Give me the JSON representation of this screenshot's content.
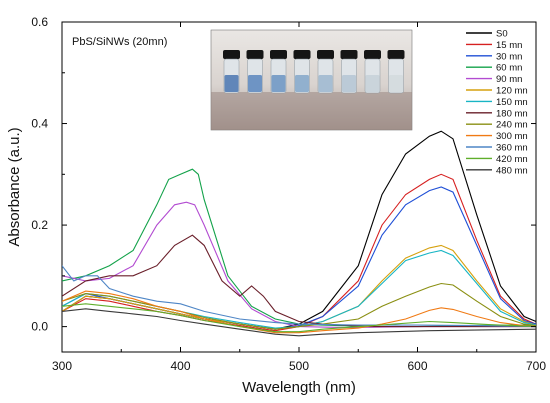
{
  "chart_data": {
    "type": "line",
    "annotation": "PbS/SiNWs (20mn)",
    "xlabel": "Wavelength (nm)",
    "ylabel": "Absorbance (a.u.)",
    "xlim": [
      300,
      700
    ],
    "ylim": [
      -0.05,
      0.6
    ],
    "xticks": [
      300,
      400,
      500,
      600,
      700
    ],
    "yticks": [
      0.0,
      0.2,
      0.4,
      0.6
    ],
    "ytick_labels": [
      "0.0",
      "0.2",
      "0.4",
      "0.6"
    ],
    "grid": false,
    "legend_position": "top-right",
    "inset": "photograph of eight sample vials (blue to clear)",
    "series": [
      {
        "name": "S0",
        "color": "#000000",
        "points": [
          [
            300,
            0.03
          ],
          [
            320,
            0.06
          ],
          [
            340,
            0.055
          ],
          [
            360,
            0.045
          ],
          [
            380,
            0.035
          ],
          [
            400,
            0.025
          ],
          [
            420,
            0.015
          ],
          [
            450,
            0.005
          ],
          [
            480,
            -0.005
          ],
          [
            500,
            0.005
          ],
          [
            520,
            0.03
          ],
          [
            550,
            0.12
          ],
          [
            570,
            0.26
          ],
          [
            590,
            0.34
          ],
          [
            610,
            0.375
          ],
          [
            620,
            0.385
          ],
          [
            630,
            0.37
          ],
          [
            650,
            0.22
          ],
          [
            670,
            0.08
          ],
          [
            690,
            0.02
          ],
          [
            700,
            0.01
          ]
        ]
      },
      {
        "name": "15 mn",
        "color": "#d62020",
        "points": [
          [
            300,
            0.03
          ],
          [
            320,
            0.055
          ],
          [
            340,
            0.05
          ],
          [
            360,
            0.04
          ],
          [
            380,
            0.03
          ],
          [
            400,
            0.022
          ],
          [
            420,
            0.012
          ],
          [
            450,
            0.002
          ],
          [
            480,
            -0.008
          ],
          [
            500,
            0.0
          ],
          [
            520,
            0.02
          ],
          [
            550,
            0.09
          ],
          [
            570,
            0.2
          ],
          [
            590,
            0.26
          ],
          [
            610,
            0.29
          ],
          [
            620,
            0.3
          ],
          [
            630,
            0.29
          ],
          [
            650,
            0.17
          ],
          [
            670,
            0.06
          ],
          [
            690,
            0.015
          ],
          [
            700,
            0.005
          ]
        ]
      },
      {
        "name": "30 mn",
        "color": "#1f4fd6",
        "points": [
          [
            300,
            0.04
          ],
          [
            320,
            0.065
          ],
          [
            340,
            0.055
          ],
          [
            360,
            0.045
          ],
          [
            380,
            0.035
          ],
          [
            400,
            0.025
          ],
          [
            420,
            0.015
          ],
          [
            450,
            0.005
          ],
          [
            480,
            -0.005
          ],
          [
            500,
            0.002
          ],
          [
            520,
            0.02
          ],
          [
            550,
            0.08
          ],
          [
            570,
            0.18
          ],
          [
            590,
            0.24
          ],
          [
            610,
            0.268
          ],
          [
            620,
            0.275
          ],
          [
            630,
            0.265
          ],
          [
            650,
            0.16
          ],
          [
            670,
            0.055
          ],
          [
            690,
            0.012
          ],
          [
            700,
            0.005
          ]
        ]
      },
      {
        "name": "60 mn",
        "color": "#13a24a",
        "points": [
          [
            300,
            0.09
          ],
          [
            320,
            0.1
          ],
          [
            340,
            0.12
          ],
          [
            360,
            0.15
          ],
          [
            380,
            0.24
          ],
          [
            390,
            0.29
          ],
          [
            400,
            0.3
          ],
          [
            410,
            0.31
          ],
          [
            415,
            0.3
          ],
          [
            420,
            0.25
          ],
          [
            440,
            0.1
          ],
          [
            460,
            0.04
          ],
          [
            480,
            0.015
          ],
          [
            500,
            0.005
          ],
          [
            520,
            0.003
          ],
          [
            560,
            0.0
          ],
          [
            600,
            0.0
          ],
          [
            640,
            0.002
          ],
          [
            680,
            0.003
          ],
          [
            700,
            0.003
          ]
        ]
      },
      {
        "name": "90 mn",
        "color": "#b24bd1",
        "points": [
          [
            300,
            0.1
          ],
          [
            320,
            0.09
          ],
          [
            340,
            0.095
          ],
          [
            360,
            0.12
          ],
          [
            380,
            0.2
          ],
          [
            395,
            0.24
          ],
          [
            405,
            0.245
          ],
          [
            412,
            0.24
          ],
          [
            420,
            0.2
          ],
          [
            440,
            0.09
          ],
          [
            460,
            0.035
          ],
          [
            480,
            0.01
          ],
          [
            500,
            0.0
          ],
          [
            540,
            -0.002
          ],
          [
            600,
            0.0
          ],
          [
            650,
            0.0
          ],
          [
            700,
            0.0
          ]
        ]
      },
      {
        "name": "120 mn",
        "color": "#d6a10f",
        "points": [
          [
            300,
            0.03
          ],
          [
            320,
            0.06
          ],
          [
            340,
            0.055
          ],
          [
            360,
            0.045
          ],
          [
            380,
            0.035
          ],
          [
            400,
            0.025
          ],
          [
            420,
            0.015
          ],
          [
            450,
            0.005
          ],
          [
            480,
            -0.005
          ],
          [
            500,
            0.0
          ],
          [
            520,
            0.01
          ],
          [
            550,
            0.04
          ],
          [
            570,
            0.09
          ],
          [
            590,
            0.135
          ],
          [
            610,
            0.155
          ],
          [
            620,
            0.16
          ],
          [
            630,
            0.15
          ],
          [
            650,
            0.09
          ],
          [
            670,
            0.035
          ],
          [
            690,
            0.01
          ],
          [
            700,
            0.003
          ]
        ]
      },
      {
        "name": "150 mn",
        "color": "#18b5c4",
        "points": [
          [
            300,
            0.04
          ],
          [
            320,
            0.065
          ],
          [
            340,
            0.06
          ],
          [
            360,
            0.05
          ],
          [
            380,
            0.04
          ],
          [
            400,
            0.03
          ],
          [
            420,
            0.02
          ],
          [
            450,
            0.008
          ],
          [
            480,
            -0.003
          ],
          [
            500,
            0.0
          ],
          [
            520,
            0.01
          ],
          [
            550,
            0.04
          ],
          [
            570,
            0.085
          ],
          [
            590,
            0.13
          ],
          [
            610,
            0.145
          ],
          [
            620,
            0.15
          ],
          [
            630,
            0.14
          ],
          [
            650,
            0.085
          ],
          [
            670,
            0.03
          ],
          [
            690,
            0.008
          ],
          [
            700,
            0.003
          ]
        ]
      },
      {
        "name": "180 mn",
        "color": "#6a1f2a",
        "points": [
          [
            300,
            0.06
          ],
          [
            320,
            0.09
          ],
          [
            340,
            0.1
          ],
          [
            360,
            0.1
          ],
          [
            380,
            0.12
          ],
          [
            395,
            0.16
          ],
          [
            410,
            0.18
          ],
          [
            420,
            0.16
          ],
          [
            435,
            0.09
          ],
          [
            450,
            0.06
          ],
          [
            460,
            0.08
          ],
          [
            470,
            0.06
          ],
          [
            480,
            0.03
          ],
          [
            500,
            0.01
          ],
          [
            520,
            0.005
          ],
          [
            560,
            0.0
          ],
          [
            600,
            0.0
          ],
          [
            640,
            0.0
          ],
          [
            680,
            0.0
          ],
          [
            700,
            0.0
          ]
        ]
      },
      {
        "name": "240 mn",
        "color": "#8a8f12",
        "points": [
          [
            300,
            0.05
          ],
          [
            320,
            0.065
          ],
          [
            340,
            0.06
          ],
          [
            360,
            0.05
          ],
          [
            380,
            0.04
          ],
          [
            400,
            0.03
          ],
          [
            420,
            0.018
          ],
          [
            450,
            0.005
          ],
          [
            480,
            -0.005
          ],
          [
            500,
            0.0
          ],
          [
            520,
            0.005
          ],
          [
            550,
            0.015
          ],
          [
            570,
            0.04
          ],
          [
            590,
            0.06
          ],
          [
            610,
            0.078
          ],
          [
            620,
            0.085
          ],
          [
            630,
            0.082
          ],
          [
            650,
            0.05
          ],
          [
            670,
            0.02
          ],
          [
            690,
            0.005
          ],
          [
            700,
            0.002
          ]
        ]
      },
      {
        "name": "300 mn",
        "color": "#f07a14",
        "points": [
          [
            300,
            0.05
          ],
          [
            320,
            0.07
          ],
          [
            340,
            0.065
          ],
          [
            360,
            0.055
          ],
          [
            380,
            0.04
          ],
          [
            400,
            0.03
          ],
          [
            420,
            0.015
          ],
          [
            450,
            0.0
          ],
          [
            480,
            -0.012
          ],
          [
            500,
            -0.012
          ],
          [
            520,
            -0.008
          ],
          [
            550,
            -0.003
          ],
          [
            570,
            0.005
          ],
          [
            590,
            0.015
          ],
          [
            610,
            0.032
          ],
          [
            620,
            0.037
          ],
          [
            630,
            0.034
          ],
          [
            650,
            0.02
          ],
          [
            670,
            0.008
          ],
          [
            690,
            0.002
          ],
          [
            700,
            0.0
          ]
        ]
      },
      {
        "name": "360 mn",
        "color": "#4f86c6",
        "points": [
          [
            300,
            0.12
          ],
          [
            310,
            0.09
          ],
          [
            320,
            0.1
          ],
          [
            330,
            0.1
          ],
          [
            340,
            0.075
          ],
          [
            360,
            0.06
          ],
          [
            380,
            0.05
          ],
          [
            400,
            0.045
          ],
          [
            420,
            0.03
          ],
          [
            450,
            0.015
          ],
          [
            480,
            0.008
          ],
          [
            500,
            0.005
          ],
          [
            550,
            0.003
          ],
          [
            600,
            0.003
          ],
          [
            650,
            0.002
          ],
          [
            700,
            0.0
          ]
        ]
      },
      {
        "name": "420 mn",
        "color": "#5fae2a",
        "points": [
          [
            300,
            0.04
          ],
          [
            320,
            0.045
          ],
          [
            340,
            0.04
          ],
          [
            360,
            0.035
          ],
          [
            380,
            0.03
          ],
          [
            400,
            0.022
          ],
          [
            420,
            0.012
          ],
          [
            450,
            0.0
          ],
          [
            480,
            -0.01
          ],
          [
            500,
            -0.01
          ],
          [
            520,
            -0.005
          ],
          [
            550,
            0.0
          ],
          [
            580,
            0.005
          ],
          [
            610,
            0.01
          ],
          [
            630,
            0.008
          ],
          [
            660,
            0.004
          ],
          [
            690,
            0.001
          ],
          [
            700,
            0.0
          ]
        ]
      },
      {
        "name": "480 mn",
        "color": "#3a3a3a",
        "points": [
          [
            300,
            0.03
          ],
          [
            320,
            0.035
          ],
          [
            340,
            0.03
          ],
          [
            360,
            0.025
          ],
          [
            380,
            0.02
          ],
          [
            400,
            0.012
          ],
          [
            420,
            0.005
          ],
          [
            450,
            -0.005
          ],
          [
            480,
            -0.015
          ],
          [
            500,
            -0.018
          ],
          [
            520,
            -0.015
          ],
          [
            550,
            -0.012
          ],
          [
            580,
            -0.01
          ],
          [
            610,
            -0.008
          ],
          [
            640,
            -0.007
          ],
          [
            670,
            -0.006
          ],
          [
            700,
            -0.005
          ]
        ]
      }
    ]
  }
}
